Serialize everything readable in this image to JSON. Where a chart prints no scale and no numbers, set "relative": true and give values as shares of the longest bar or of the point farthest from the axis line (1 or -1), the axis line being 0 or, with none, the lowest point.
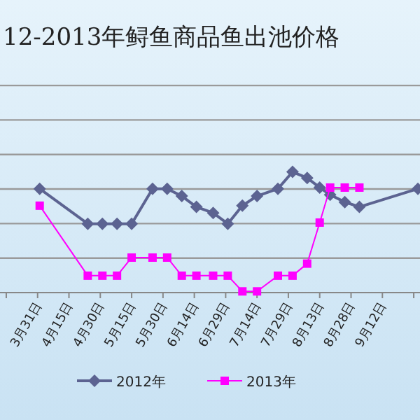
{
  "chart_data": {
    "type": "line",
    "title": "12-2013年鲟鱼商品鱼出池价格",
    "relative": true,
    "grid": "y",
    "legend": "bottom",
    "x": [
      "--04-01",
      "--04-24",
      "--05-01",
      "--05-08",
      "--05-15",
      "--05-25",
      "--06-01",
      "--06-08",
      "--06-15",
      "--06-23",
      "--06-30",
      "--07-07",
      "--07-14",
      "--07-24",
      "--07-31",
      "--08-07",
      "--08-13",
      "--08-18",
      "--08-25",
      "--09-01",
      "--09-29"
    ],
    "xlim": [
      "--03-13",
      "--09-30"
    ],
    "xticks": [
      {
        "value": "--03-16",
        "label": null
      },
      {
        "value": "--03-31",
        "label": "3月31日"
      },
      {
        "value": "--04-15",
        "label": "4月15日"
      },
      {
        "value": "--04-30",
        "label": "4月30日"
      },
      {
        "value": "--05-15",
        "label": "5月15日"
      },
      {
        "value": "--05-30",
        "label": "5月30日"
      },
      {
        "value": "--06-14",
        "label": "6月14日"
      },
      {
        "value": "--06-29",
        "label": "6月29日"
      },
      {
        "value": "--07-14",
        "label": "7月14日"
      },
      {
        "value": "--07-29",
        "label": "7月29日"
      },
      {
        "value": "--08-13",
        "label": "8月13日"
      },
      {
        "value": "--08-28",
        "label": "8月28日"
      },
      {
        "value": "--09-12",
        "label": "9月12日"
      },
      {
        "value": "--09-27",
        "label": null
      }
    ],
    "series": [
      {
        "name": "2012年",
        "color": "#5c6391",
        "marker": "diamond",
        "values": [
          0.86,
          0.57,
          0.57,
          0.57,
          0.57,
          0.86,
          0.86,
          0.8,
          0.71,
          0.66,
          0.57,
          0.72,
          0.8,
          0.86,
          1,
          0.95,
          0.87,
          0.81,
          0.75,
          0.71,
          0.86
        ]
      },
      {
        "name": "2013年",
        "color": "#ff00ff",
        "marker": "square",
        "values": [
          0.72,
          0.14,
          0.14,
          0.14,
          0.29,
          0.29,
          0.29,
          0.14,
          0.14,
          0.14,
          0.14,
          0.01,
          0.01,
          0.14,
          0.14,
          0.24,
          0.58,
          0.87,
          0.87,
          0.87,
          null
        ]
      }
    ]
  }
}
